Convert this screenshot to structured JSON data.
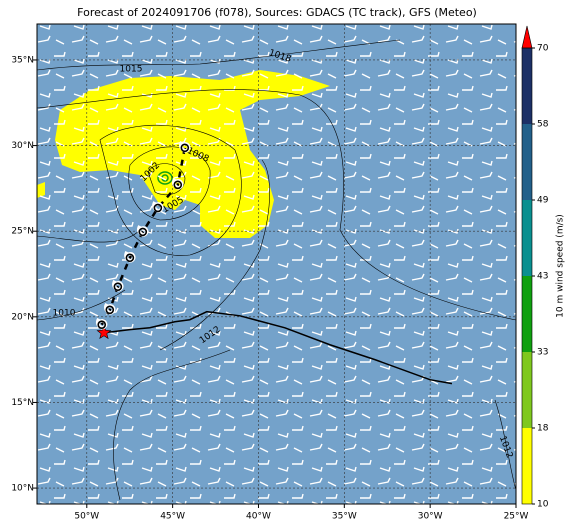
{
  "chart_data": {
    "type": "map",
    "title": "Forecast of 2024091706 (f078), Sources: GDACS (TC track), GFS (Meteo)",
    "xlim": [
      -52.9,
      -25
    ],
    "ylim": [
      9.07,
      37.1
    ],
    "xticks": [
      {
        "value": -50,
        "label": "50°W"
      },
      {
        "value": -45,
        "label": "45°W"
      },
      {
        "value": -40,
        "label": "40°W"
      },
      {
        "value": -35,
        "label": "35°W"
      },
      {
        "value": -30,
        "label": "30°W"
      },
      {
        "value": -25,
        "label": "25°W"
      }
    ],
    "yticks": [
      {
        "value": 10,
        "label": "10°N"
      },
      {
        "value": 15,
        "label": "15°N"
      },
      {
        "value": 20,
        "label": "20°N"
      },
      {
        "value": 25,
        "label": "25°N"
      },
      {
        "value": 30,
        "label": "30°N"
      },
      {
        "value": 35,
        "label": "35°N"
      }
    ],
    "grid": true,
    "track": {
      "color": "#000000",
      "star_color": "#ff0000",
      "lon": [
        -49.0,
        -47.49,
        -46.33,
        -44.87,
        -44.0,
        -43.01,
        -41.08,
        -38.46,
        -35.84,
        -33.22,
        -30.01,
        -28.73
      ],
      "lat": [
        19.07,
        19.25,
        19.36,
        19.71,
        19.83,
        20.3,
        20.06,
        19.36,
        18.37,
        17.5,
        16.33,
        16.1
      ]
    },
    "forecast": {
      "color": "#000000",
      "lon": [
        -49.13,
        -48.66,
        -48.19,
        -47.49,
        -46.74,
        -45.86,
        -44.7,
        -44.29
      ],
      "lat": [
        19.54,
        20.41,
        21.76,
        23.45,
        24.96,
        26.36,
        27.71,
        29.87
      ]
    },
    "isobar_labels": [
      1015,
      1018,
      1008,
      1002,
      1005,
      1010,
      1012,
      1012
    ],
    "colorbar": {
      "label": "10 m wind speed (m/s)",
      "levels": [
        10,
        18,
        33,
        43,
        49,
        58,
        70
      ],
      "colors": [
        "#ffff00",
        "#7fc81e",
        "#10a010",
        "#0a9090",
        "#22608a",
        "#1c3066"
      ],
      "extend_color": "#ff0000"
    }
  }
}
